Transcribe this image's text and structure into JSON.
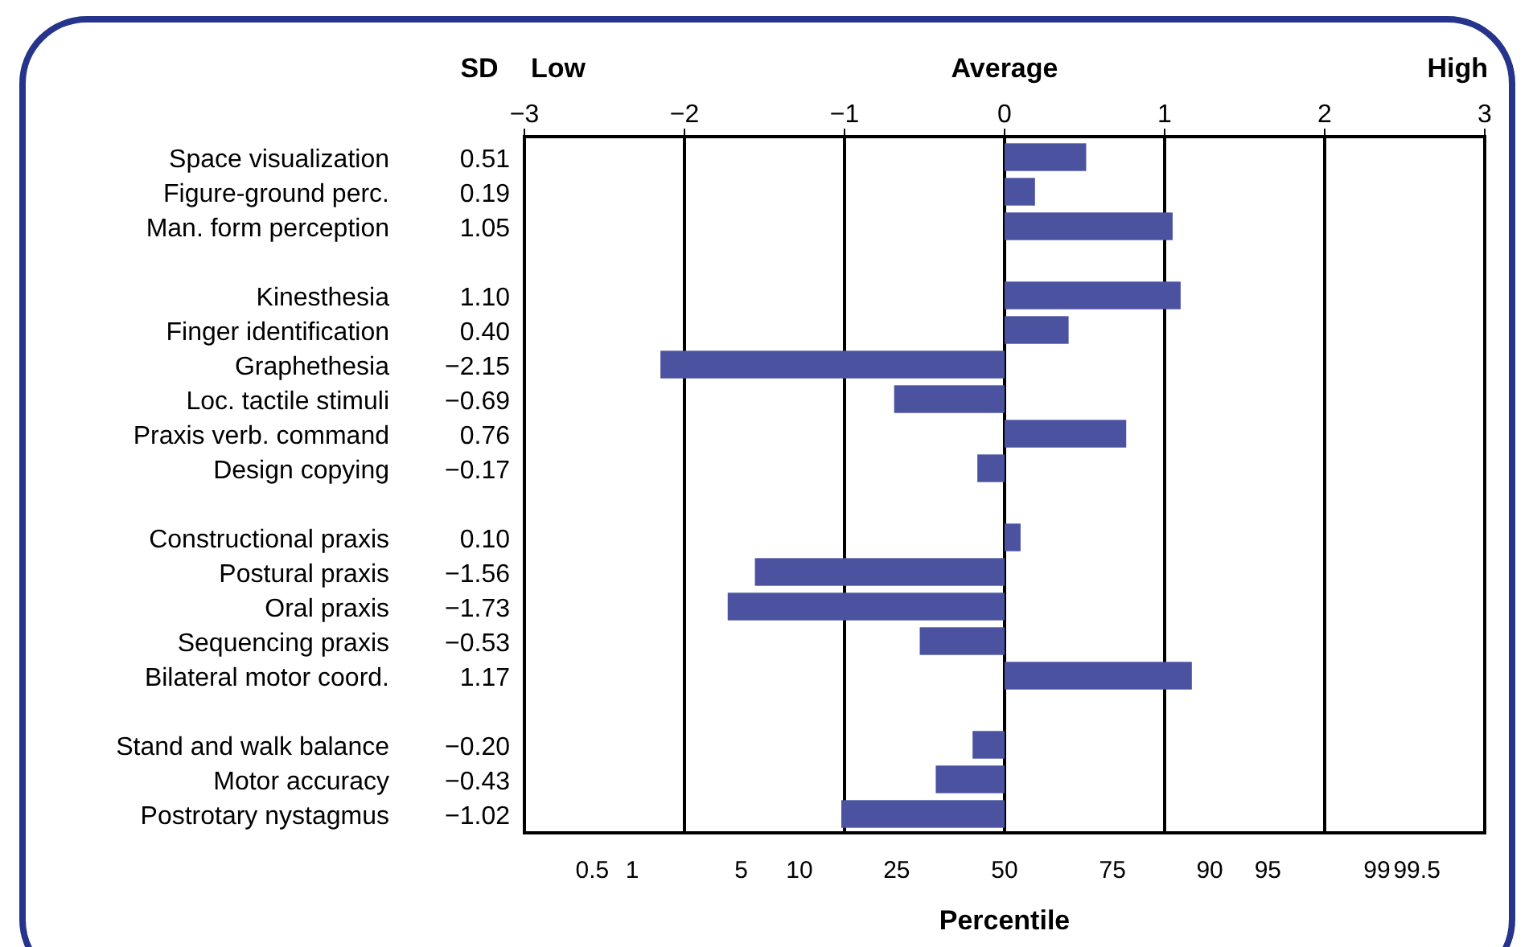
{
  "chart_data": {
    "type": "bar",
    "orientation": "horizontal",
    "color": "#4b53a0",
    "categories": [
      "Space visualization",
      "Figure-ground perc.",
      "Man. form perception",
      null,
      "Kinesthesia",
      "Finger identification",
      "Graphethesia",
      "Loc. tactile stimuli",
      "Praxis verb. command",
      "Design copying",
      null,
      "Constructional praxis",
      "Postural praxis",
      "Oral praxis",
      "Sequencing praxis",
      "Bilateral motor coord.",
      null,
      "Stand and walk balance",
      "Motor accuracy",
      "Postrotary nystagmus"
    ],
    "values": [
      0.51,
      0.19,
      1.05,
      null,
      1.1,
      0.4,
      -2.15,
      -0.69,
      0.76,
      -0.17,
      null,
      0.1,
      -1.56,
      -1.73,
      -0.53,
      1.17,
      null,
      -0.2,
      -0.43,
      -1.02
    ],
    "value_labels": [
      "0.51",
      "0.19",
      "1.05",
      null,
      "1.10",
      "0.40",
      "−2.15",
      "−0.69",
      "0.76",
      "−0.17",
      null,
      "0.10",
      "−1.56",
      "−1.73",
      "−0.53",
      "1.17",
      null,
      "−0.20",
      "−0.43",
      "−1.02"
    ],
    "xlim": [
      -3,
      3
    ],
    "xticks": [
      {
        "value": -3,
        "label": "−3"
      },
      {
        "value": -2,
        "label": "−2"
      },
      {
        "value": -1,
        "label": "−1"
      },
      0,
      1,
      2,
      3
    ],
    "xlabel": "Percentile",
    "grid": "x",
    "annotations": [
      "SD",
      "Low",
      "Average",
      "High",
      "0.5",
      "1",
      "5",
      "10",
      "25",
      "50",
      "75",
      "90",
      "95",
      "99",
      "99.5"
    ]
  }
}
